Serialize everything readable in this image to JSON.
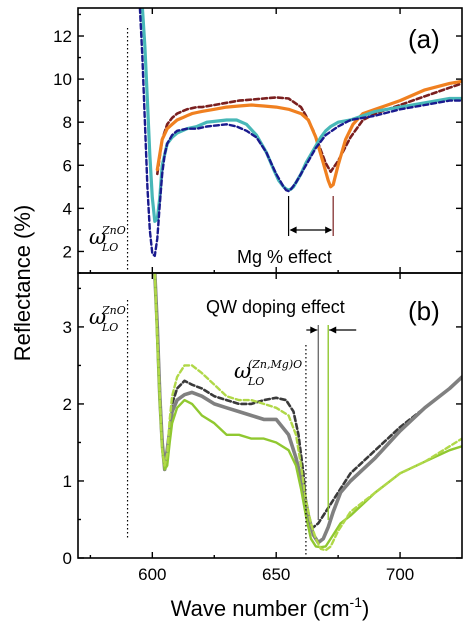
{
  "chart_data": [
    {
      "panel": "(a)",
      "type": "line",
      "xlim": [
        570,
        725
      ],
      "ylim": [
        1,
        13.3
      ],
      "yticks": [
        2,
        4,
        6,
        8,
        10,
        12
      ],
      "marker_label": "ZnO",
      "marker_x": 590,
      "annotation": "Mg % effect",
      "annotation_span": [
        655,
        673
      ],
      "series": [
        {
          "color": "#7a1f1f",
          "dash": "5 3",
          "width": 2.6,
          "x": [
            602,
            604,
            606,
            608,
            610,
            612,
            614,
            616,
            618,
            620,
            625,
            630,
            635,
            640,
            645,
            650,
            655,
            660,
            662,
            665,
            668,
            670,
            672,
            675,
            680,
            685,
            690,
            700,
            710,
            720,
            725
          ],
          "y": [
            5.6,
            7.2,
            7.9,
            8.2,
            8.4,
            8.5,
            8.6,
            8.65,
            8.7,
            8.7,
            8.8,
            8.9,
            9.0,
            9.05,
            9.1,
            9.15,
            9.1,
            8.7,
            8.3,
            7.6,
            6.7,
            6.1,
            5.7,
            6.2,
            7.3,
            8.1,
            8.4,
            8.8,
            9.2,
            9.6,
            9.8
          ]
        },
        {
          "color": "#f08020",
          "dash": "",
          "width": 3.2,
          "x": [
            602,
            604,
            606,
            608,
            610,
            612,
            614,
            616,
            618,
            620,
            625,
            630,
            635,
            640,
            645,
            650,
            655,
            660,
            663,
            666,
            669,
            671,
            672,
            673,
            675,
            678,
            681,
            685,
            690,
            700,
            710,
            720,
            725
          ],
          "y": [
            5.8,
            7.2,
            7.7,
            7.9,
            8.1,
            8.2,
            8.3,
            8.4,
            8.45,
            8.5,
            8.6,
            8.7,
            8.75,
            8.8,
            8.75,
            8.7,
            8.6,
            8.4,
            8.1,
            7.3,
            6.1,
            5.3,
            5.0,
            5.1,
            6.0,
            7.2,
            7.9,
            8.4,
            8.6,
            9.0,
            9.5,
            9.8,
            9.9
          ]
        },
        {
          "color": "#48b8b8",
          "dash": "",
          "width": 3.2,
          "x": [
            596,
            597,
            598,
            599,
            600,
            601,
            602,
            603,
            604,
            606,
            608,
            610,
            614,
            618,
            622,
            626,
            630,
            634,
            638,
            642,
            646,
            649,
            651,
            653,
            654,
            655,
            656,
            657,
            658,
            660,
            662,
            665,
            668,
            670,
            672,
            675,
            680,
            685,
            690,
            700,
            710,
            720,
            725
          ],
          "y": [
            13.3,
            11.5,
            9.0,
            6.5,
            4.5,
            3.4,
            3.5,
            4.5,
            6.0,
            7.0,
            7.3,
            7.5,
            7.7,
            7.8,
            8.0,
            8.05,
            8.1,
            8.1,
            7.9,
            7.4,
            6.6,
            5.8,
            5.3,
            5.0,
            4.9,
            4.85,
            4.9,
            5.0,
            5.2,
            5.6,
            6.1,
            6.7,
            7.3,
            7.6,
            7.8,
            8.0,
            8.1,
            8.3,
            8.5,
            8.7,
            8.9,
            9.1,
            9.1
          ]
        },
        {
          "color": "#1a1a8e",
          "dash": "5 3",
          "width": 2.4,
          "x": [
            595,
            596,
            597,
            598,
            599,
            600,
            601,
            602,
            603,
            604,
            605,
            606,
            608,
            610,
            614,
            618,
            622,
            626,
            630,
            634,
            638,
            642,
            646,
            648,
            650,
            652,
            653,
            654,
            655,
            656,
            658,
            660,
            663,
            666,
            670,
            675,
            680,
            690,
            700,
            710,
            720,
            725
          ],
          "y": [
            13.3,
            11.0,
            8.0,
            5.0,
            3.0,
            1.9,
            1.8,
            2.6,
            4.2,
            5.6,
            6.5,
            7.0,
            7.4,
            7.6,
            7.7,
            7.7,
            7.8,
            7.85,
            7.9,
            7.8,
            7.6,
            7.3,
            6.6,
            6.1,
            5.6,
            5.2,
            5.0,
            4.85,
            4.8,
            4.9,
            5.2,
            5.6,
            6.2,
            6.8,
            7.4,
            7.8,
            8.1,
            8.3,
            8.6,
            8.8,
            9.0,
            9.0
          ]
        }
      ]
    },
    {
      "panel": "(b)",
      "type": "line",
      "xlim": [
        570,
        725
      ],
      "ylim": [
        0,
        3.7
      ],
      "yticks": [
        0,
        1,
        2,
        3
      ],
      "xticks": [
        600,
        650,
        700
      ],
      "marker_label": "ZnO",
      "marker_x": 590,
      "marker2_label": "(Zn,Mg)O",
      "marker2_x": 662,
      "annotation": "QW doping effect",
      "annotation_lines": [
        667,
        671
      ],
      "series": [
        {
          "color": "#3a3a3a",
          "dash": "5 3",
          "width": 2.6,
          "x": [
            601,
            602,
            603,
            604,
            605,
            606,
            607,
            608,
            610,
            613,
            616,
            620,
            625,
            630,
            635,
            640,
            645,
            650,
            654,
            657,
            659,
            661,
            662,
            663,
            664,
            665,
            667,
            670,
            675,
            680,
            690,
            700,
            710,
            720,
            725
          ],
          "y": [
            3.7,
            3.0,
            2.2,
            1.5,
            1.2,
            1.3,
            1.7,
            2.0,
            2.2,
            2.3,
            2.25,
            2.2,
            2.1,
            2.05,
            2.0,
            2.0,
            2.05,
            2.08,
            2.05,
            1.9,
            1.6,
            1.1,
            0.7,
            0.5,
            0.4,
            0.4,
            0.45,
            0.6,
            0.85,
            1.1,
            1.4,
            1.7,
            1.95,
            2.2,
            2.35
          ]
        },
        {
          "color": "#808080",
          "dash": "",
          "width": 3.6,
          "x": [
            601,
            602,
            603,
            604,
            605,
            606,
            608,
            610,
            613,
            616,
            620,
            625,
            630,
            635,
            640,
            645,
            650,
            655,
            658,
            661,
            663,
            665,
            667,
            669,
            671,
            673,
            676,
            680,
            690,
            700,
            710,
            720,
            725
          ],
          "y": [
            3.7,
            3.0,
            2.1,
            1.5,
            1.15,
            1.4,
            1.9,
            2.05,
            2.12,
            2.15,
            2.1,
            2.0,
            1.95,
            1.9,
            1.85,
            1.8,
            1.8,
            1.6,
            1.3,
            0.9,
            0.55,
            0.3,
            0.2,
            0.25,
            0.4,
            0.6,
            0.85,
            1.0,
            1.3,
            1.65,
            1.95,
            2.2,
            2.35
          ]
        },
        {
          "color": "#90c830",
          "dash": "",
          "width": 2.4,
          "x": [
            601,
            602,
            603,
            604,
            605,
            606,
            607,
            608,
            610,
            613,
            616,
            620,
            625,
            630,
            635,
            640,
            645,
            650,
            655,
            658,
            660,
            662,
            664,
            666,
            668,
            670,
            673,
            676,
            680,
            690,
            700,
            710,
            720,
            725
          ],
          "y": [
            3.7,
            2.8,
            2.0,
            1.4,
            1.15,
            1.2,
            1.5,
            1.75,
            1.95,
            2.05,
            2.0,
            1.85,
            1.75,
            1.6,
            1.6,
            1.55,
            1.55,
            1.5,
            1.4,
            1.2,
            0.9,
            0.55,
            0.25,
            0.15,
            0.14,
            0.15,
            0.3,
            0.45,
            0.55,
            0.85,
            1.1,
            1.25,
            1.4,
            1.45
          ]
        },
        {
          "color": "#b0d848",
          "dash": "5 3",
          "width": 2.4,
          "x": [
            601,
            602,
            603,
            604,
            605,
            606,
            607,
            608,
            610,
            613,
            616,
            620,
            625,
            630,
            635,
            640,
            645,
            650,
            655,
            658,
            660,
            662,
            664,
            666,
            668,
            670,
            672,
            675,
            680,
            690,
            700,
            710,
            720,
            725
          ],
          "y": [
            3.7,
            2.9,
            2.1,
            1.4,
            1.2,
            1.35,
            1.8,
            2.1,
            2.35,
            2.5,
            2.5,
            2.4,
            2.25,
            2.1,
            2.05,
            2.05,
            2.0,
            1.95,
            1.85,
            1.6,
            1.2,
            0.75,
            0.45,
            0.25,
            0.12,
            0.1,
            0.15,
            0.35,
            0.6,
            0.85,
            1.1,
            1.25,
            1.45,
            1.55
          ]
        }
      ]
    }
  ],
  "axes": {
    "xlabel": "Wave number (cm",
    "xlabel_sup": "-1",
    "xlabel_close": ")",
    "ylabel": "Reflectance (%)"
  },
  "labels": {
    "panel_a": "(a)",
    "panel_b": "(b)",
    "omega": "ω",
    "lo": "LO",
    "zno_a": "ZnO",
    "zno_b": "ZnO",
    "znmgo": "(Zn,Mg)O",
    "mg_effect": "Mg % effect",
    "qw_effect": "QW doping effect",
    "xtick_600": "600",
    "xtick_650": "650",
    "xtick_700": "700",
    "ytick_a": [
      "2",
      "4",
      "6",
      "8",
      "10",
      "12"
    ],
    "ytick_b": [
      "0",
      "1",
      "2",
      "3"
    ]
  }
}
